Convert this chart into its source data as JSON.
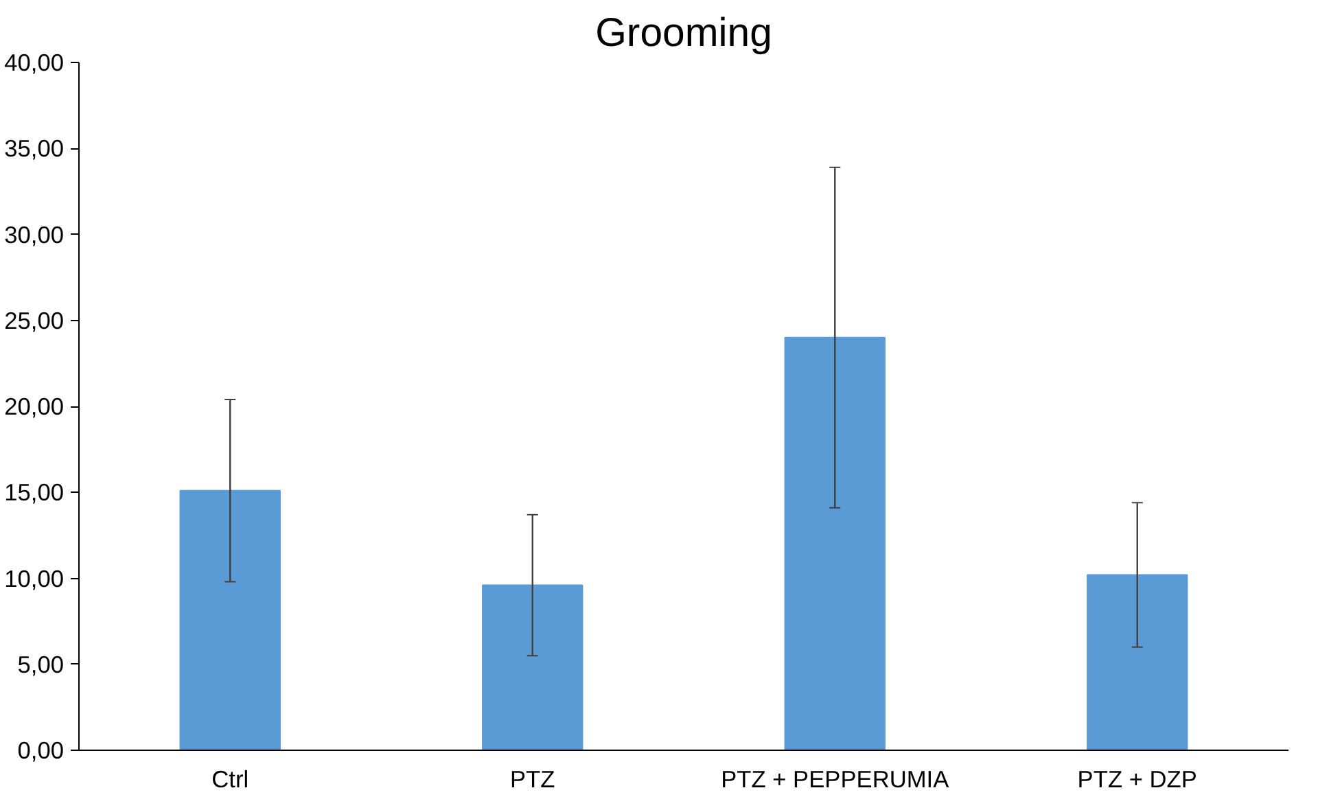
{
  "chart_data": {
    "type": "bar",
    "title": "Grooming",
    "categories": [
      "Ctrl",
      "PTZ",
      "PTZ + PEPPERUMIA",
      "PTZ + DZP"
    ],
    "values": [
      15.1,
      9.6,
      24.0,
      10.2
    ],
    "errors": [
      5.3,
      4.1,
      9.9,
      4.2
    ],
    "color": "#5b9bd5",
    "ylim": [
      0,
      40
    ],
    "yticks": [
      {
        "value": 0,
        "label": "0,00"
      },
      {
        "value": 5,
        "label": "5,00"
      },
      {
        "value": 10,
        "label": "10,00"
      },
      {
        "value": 15,
        "label": "15,00"
      },
      {
        "value": 20,
        "label": "20,00"
      },
      {
        "value": 25,
        "label": "25,00"
      },
      {
        "value": 30,
        "label": "30,00"
      },
      {
        "value": 35,
        "label": "35,00"
      },
      {
        "value": 40,
        "label": "40,00"
      }
    ],
    "grid": false
  }
}
